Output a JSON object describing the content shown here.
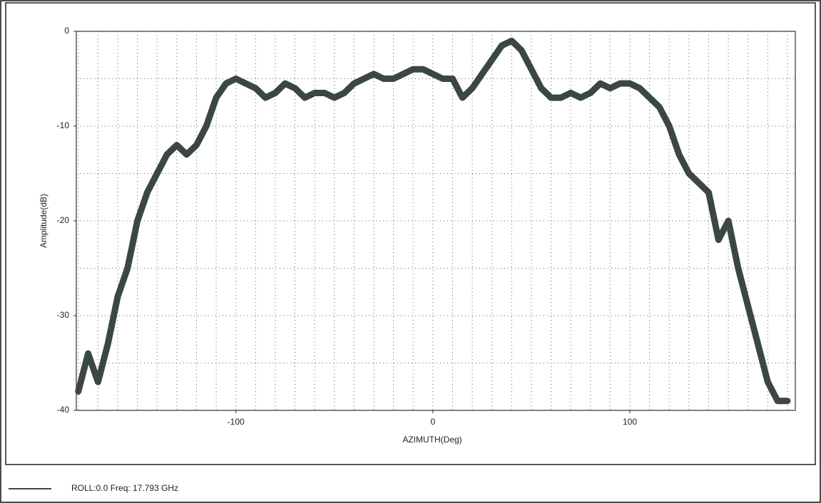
{
  "chart_data": {
    "type": "line",
    "x_label": "AZIMUTH(Deg)",
    "y_label": "Amplitude(dB)",
    "xlim": [
      -181,
      184
    ],
    "ylim": [
      -40,
      0
    ],
    "xticks": [
      -100,
      0,
      100
    ],
    "yticks": [
      -40,
      -30,
      -20,
      -10,
      0
    ],
    "xgrid": [
      -180,
      -170,
      -160,
      -150,
      -140,
      -130,
      -120,
      -110,
      -100,
      -90,
      -80,
      -70,
      -60,
      -50,
      -40,
      -30,
      -20,
      -10,
      0,
      10,
      20,
      30,
      40,
      50,
      60,
      70,
      80,
      90,
      100,
      110,
      120,
      130,
      140,
      150,
      160,
      170,
      180
    ],
    "ygrid": [
      -35,
      -30,
      -25,
      -20,
      -15,
      -10,
      -5
    ],
    "grid": true,
    "x": [
      -180,
      -175,
      -170,
      -165,
      -160,
      -155,
      -150,
      -145,
      -140,
      -135,
      -130,
      -125,
      -120,
      -115,
      -110,
      -105,
      -100,
      -95,
      -90,
      -85,
      -80,
      -75,
      -70,
      -65,
      -60,
      -55,
      -50,
      -45,
      -40,
      -35,
      -30,
      -25,
      -20,
      -15,
      -10,
      -5,
      0,
      5,
      10,
      15,
      20,
      25,
      30,
      35,
      40,
      45,
      50,
      55,
      60,
      65,
      70,
      75,
      80,
      85,
      90,
      95,
      100,
      105,
      110,
      115,
      120,
      125,
      130,
      135,
      140,
      145,
      150,
      155,
      160,
      165,
      170,
      175,
      180
    ],
    "series": [
      {
        "name": "ROLL:0.0 Freq: 17.793 GHz",
        "color": "#3a4743",
        "values": [
          -38,
          -34,
          -37,
          -33,
          -28,
          -25,
          -20,
          -17,
          -15,
          -13,
          -12,
          -13,
          -12,
          -10,
          -7,
          -5.5,
          -5,
          -5.5,
          -6,
          -7,
          -6.5,
          -5.5,
          -6,
          -7,
          -6.5,
          -6.5,
          -7,
          -6.5,
          -5.5,
          -5,
          -4.5,
          -5,
          -5,
          -4.5,
          -4,
          -4,
          -4.5,
          -5,
          -5,
          -7,
          -6,
          -4.5,
          -3,
          -1.5,
          -1,
          -2,
          -4,
          -6,
          -7,
          -7,
          -6.5,
          -7,
          -6.5,
          -5.5,
          -6,
          -5.5,
          -5.5,
          -6,
          -7,
          -8,
          -10,
          -13,
          -15,
          -16,
          -17,
          -22,
          -20,
          -25,
          -29,
          -33,
          -37,
          -39,
          -39
        ]
      }
    ]
  }
}
